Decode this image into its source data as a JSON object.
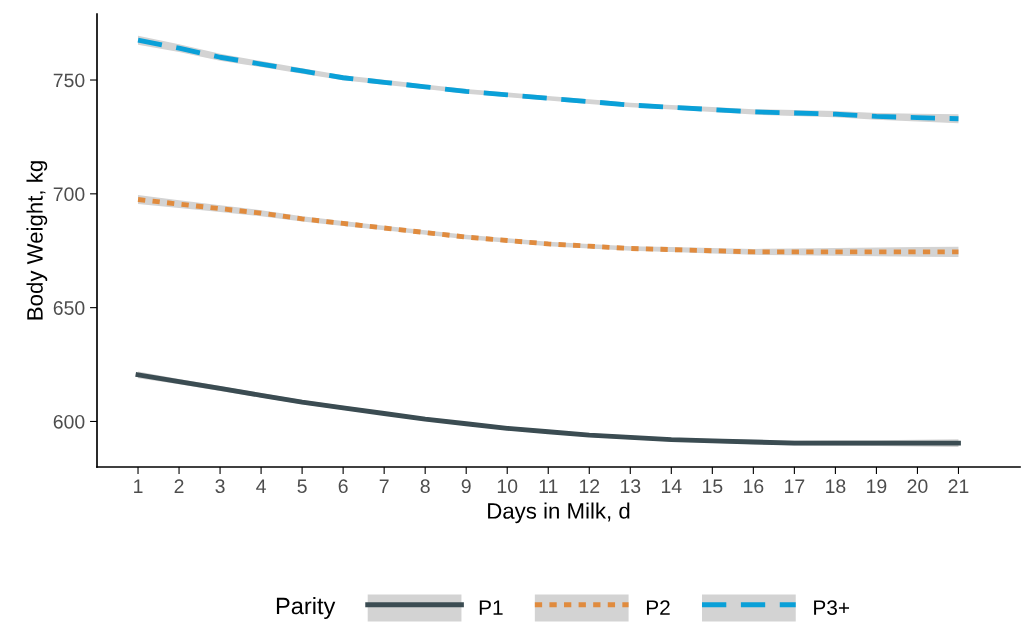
{
  "chart_data": {
    "type": "line",
    "xlabel": "Days in Milk, d",
    "ylabel": "Body Weight, kg",
    "legend_title": "Parity",
    "legend": "bottom",
    "grid": false,
    "x": [
      1,
      2,
      3,
      4,
      5,
      6,
      7,
      8,
      9,
      10,
      11,
      12,
      13,
      14,
      15,
      16,
      17,
      18,
      19,
      20,
      21
    ],
    "xlim": [
      0,
      22.5
    ],
    "xticks": [
      1,
      2,
      3,
      4,
      5,
      6,
      7,
      8,
      9,
      10,
      11,
      12,
      13,
      14,
      15,
      16,
      17,
      18,
      19,
      20,
      21
    ],
    "ylim": [
      580,
      779
    ],
    "yticks": [
      600,
      650,
      700,
      750
    ],
    "series": [
      {
        "name": "P1",
        "color": "#3b4c52",
        "line_style": "solid",
        "values": [
          620.5,
          617.5,
          614.5,
          611.5,
          608.5,
          606,
          603.5,
          601,
          599,
          597,
          595.5,
          594,
          593,
          592,
          591.5,
          591,
          590.5,
          590.5,
          590.5,
          590.5,
          590.5
        ],
        "lower": [
          619,
          616.3,
          613.4,
          610.5,
          607.6,
          605.1,
          602.7,
          600.2,
          598.2,
          596.2,
          594.7,
          593.2,
          592.2,
          591.2,
          590.6,
          590,
          589.4,
          589.3,
          589.2,
          589,
          588.8
        ],
        "upper": [
          622,
          618.7,
          615.6,
          612.5,
          609.4,
          606.9,
          604.3,
          601.8,
          599.8,
          597.8,
          596.3,
          594.8,
          593.8,
          592.8,
          592.4,
          592,
          591.6,
          591.7,
          591.8,
          592,
          592.2
        ]
      },
      {
        "name": "P2",
        "color": "#e08b3e",
        "line_style": "dotted",
        "values": [
          697.5,
          695.5,
          693.5,
          691.5,
          689,
          687,
          685,
          683,
          681,
          679.5,
          678,
          677,
          676,
          675.5,
          675,
          674.5,
          674.5,
          674.5,
          674.5,
          674.5,
          674.5
        ],
        "lower": [
          695.5,
          693.8,
          692,
          690.2,
          687.8,
          685.9,
          684,
          682,
          680,
          678.5,
          677,
          676,
          675,
          674.4,
          673.8,
          673.2,
          673,
          672.8,
          672.6,
          672.4,
          672.2
        ],
        "upper": [
          699.5,
          697.2,
          695,
          692.8,
          690.2,
          688.1,
          686,
          684,
          682,
          680.5,
          679,
          678,
          677,
          676.6,
          676.2,
          675.8,
          676,
          676.2,
          676.4,
          676.6,
          676.8
        ]
      },
      {
        "name": "P3+",
        "color": "#0aa0d8",
        "line_style": "dashed",
        "values": [
          767.5,
          764,
          760,
          757,
          754,
          751,
          749,
          747,
          745,
          743.5,
          742,
          740.5,
          739,
          738,
          737,
          736,
          735.5,
          735,
          734,
          733.5,
          733
        ],
        "lower": [
          765.5,
          762.3,
          758.5,
          755.7,
          752.8,
          749.9,
          747.9,
          746,
          744,
          742.5,
          741,
          739.5,
          738,
          737,
          735.9,
          734.8,
          734.2,
          733.6,
          732.5,
          731.8,
          731
        ],
        "upper": [
          769.5,
          765.7,
          761.5,
          758.3,
          755.2,
          752.1,
          750.1,
          748,
          746,
          744.5,
          743,
          741.5,
          740,
          739,
          738.1,
          737.2,
          736.8,
          736.4,
          735.5,
          735.2,
          735
        ]
      }
    ]
  }
}
